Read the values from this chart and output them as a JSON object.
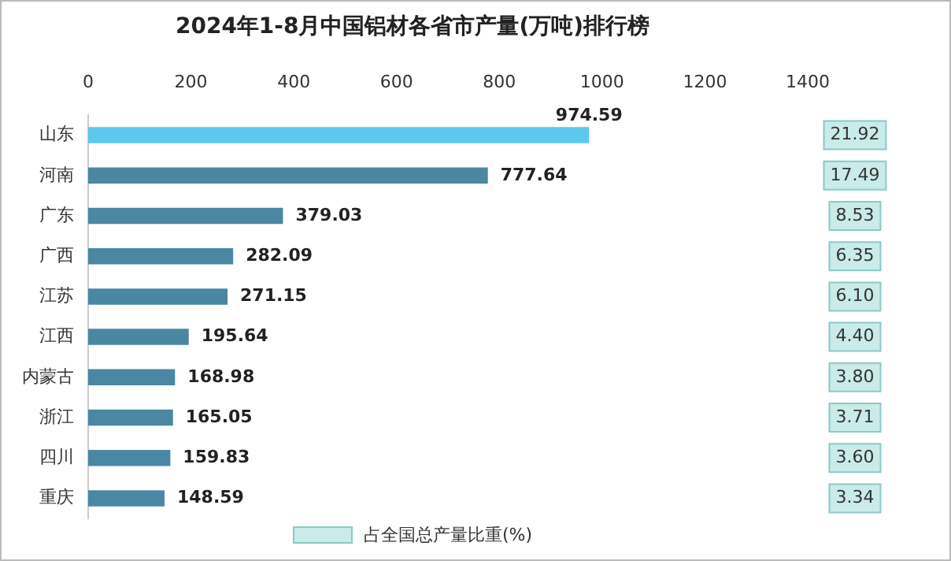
{
  "chart_data": {
    "type": "bar",
    "orientation": "horizontal",
    "title": "2024年1-8月中国铝材各省市产量(万吨)排行榜",
    "categories": [
      "山东",
      "河南",
      "广东",
      "广西",
      "江苏",
      "江西",
      "内蒙古",
      "浙江",
      "四川",
      "重庆"
    ],
    "series": [
      {
        "colors": [
          "#5bc8f0",
          "#4a87a3",
          "#4a87a3",
          "#4a87a3",
          "#4a87a3",
          "#4a87a3",
          "#4a87a3",
          "#4a87a3",
          "#4a87a3",
          "#4a87a3"
        ],
        "values": [
          974.59,
          777.64,
          379.03,
          282.09,
          271.15,
          195.64,
          168.98,
          165.05,
          159.83,
          148.59
        ]
      }
    ],
    "annotations": [
      "占全国总产量比重(%)",
      "21.92",
      "17.49",
      "8.53",
      "6.35",
      "6.10",
      "4.40",
      "3.80",
      "3.71",
      "3.60",
      "3.34"
    ],
    "xlim": [
      0,
      1400
    ],
    "xticks": [
      0,
      200,
      400,
      600,
      800,
      1000,
      1200,
      1400
    ],
    "data_labels": true,
    "grid": false
  }
}
